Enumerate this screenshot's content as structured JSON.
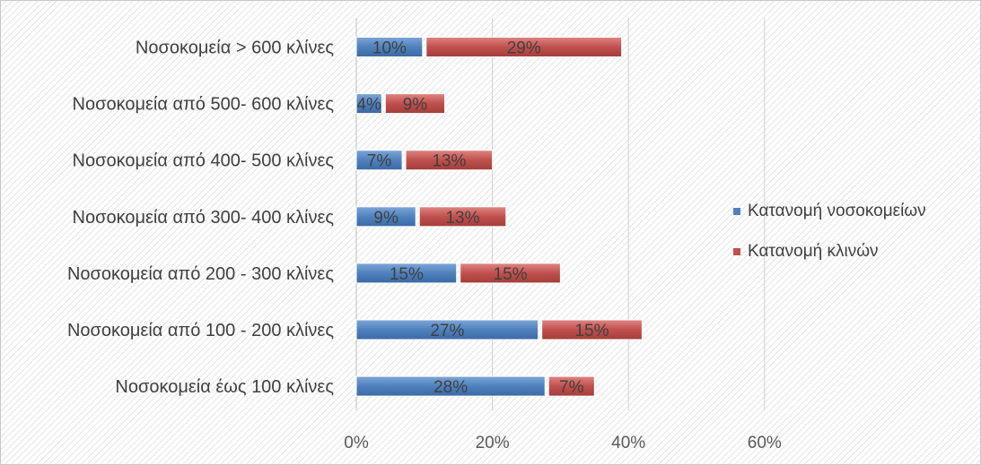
{
  "chart_data": {
    "type": "bar",
    "orientation": "horizontal",
    "stacked": true,
    "categories": [
      "Νοσοκομεία > 600 κλίνες",
      "Νοσοκομεία από 500- 600 κλίνες",
      "Νοσοκομεία από 400- 500 κλίνες",
      "Νοσοκομεία από 300- 400 κλίνες",
      "Νοσοκομεία από 200 - 300 κλίνες",
      "Νοσοκομεία από 100 - 200 κλίνες",
      "Νοσοκομεία έως 100 κλίνες"
    ],
    "series": [
      {
        "name": "Κατανομή νοσοκομείων",
        "values": [
          10,
          4,
          7,
          9,
          15,
          27,
          28
        ],
        "color": "#4f81bd"
      },
      {
        "name": "Κατανομή κλινών",
        "values": [
          29,
          9,
          13,
          13,
          15,
          15,
          7
        ],
        "color": "#c0504d"
      }
    ],
    "data_labels": [
      [
        "10%",
        "4%",
        "7%",
        "9%",
        "15%",
        "27%",
        "28%"
      ],
      [
        "29%",
        "9%",
        "13%",
        "13%",
        "15%",
        "15%",
        "7%"
      ]
    ],
    "xticks": [
      "0%",
      "20%",
      "40%",
      "60%"
    ],
    "xlim": [
      0,
      60
    ],
    "unit": "%",
    "grid": true,
    "legend_position": "right",
    "title": "",
    "xlabel": "",
    "ylabel": ""
  }
}
